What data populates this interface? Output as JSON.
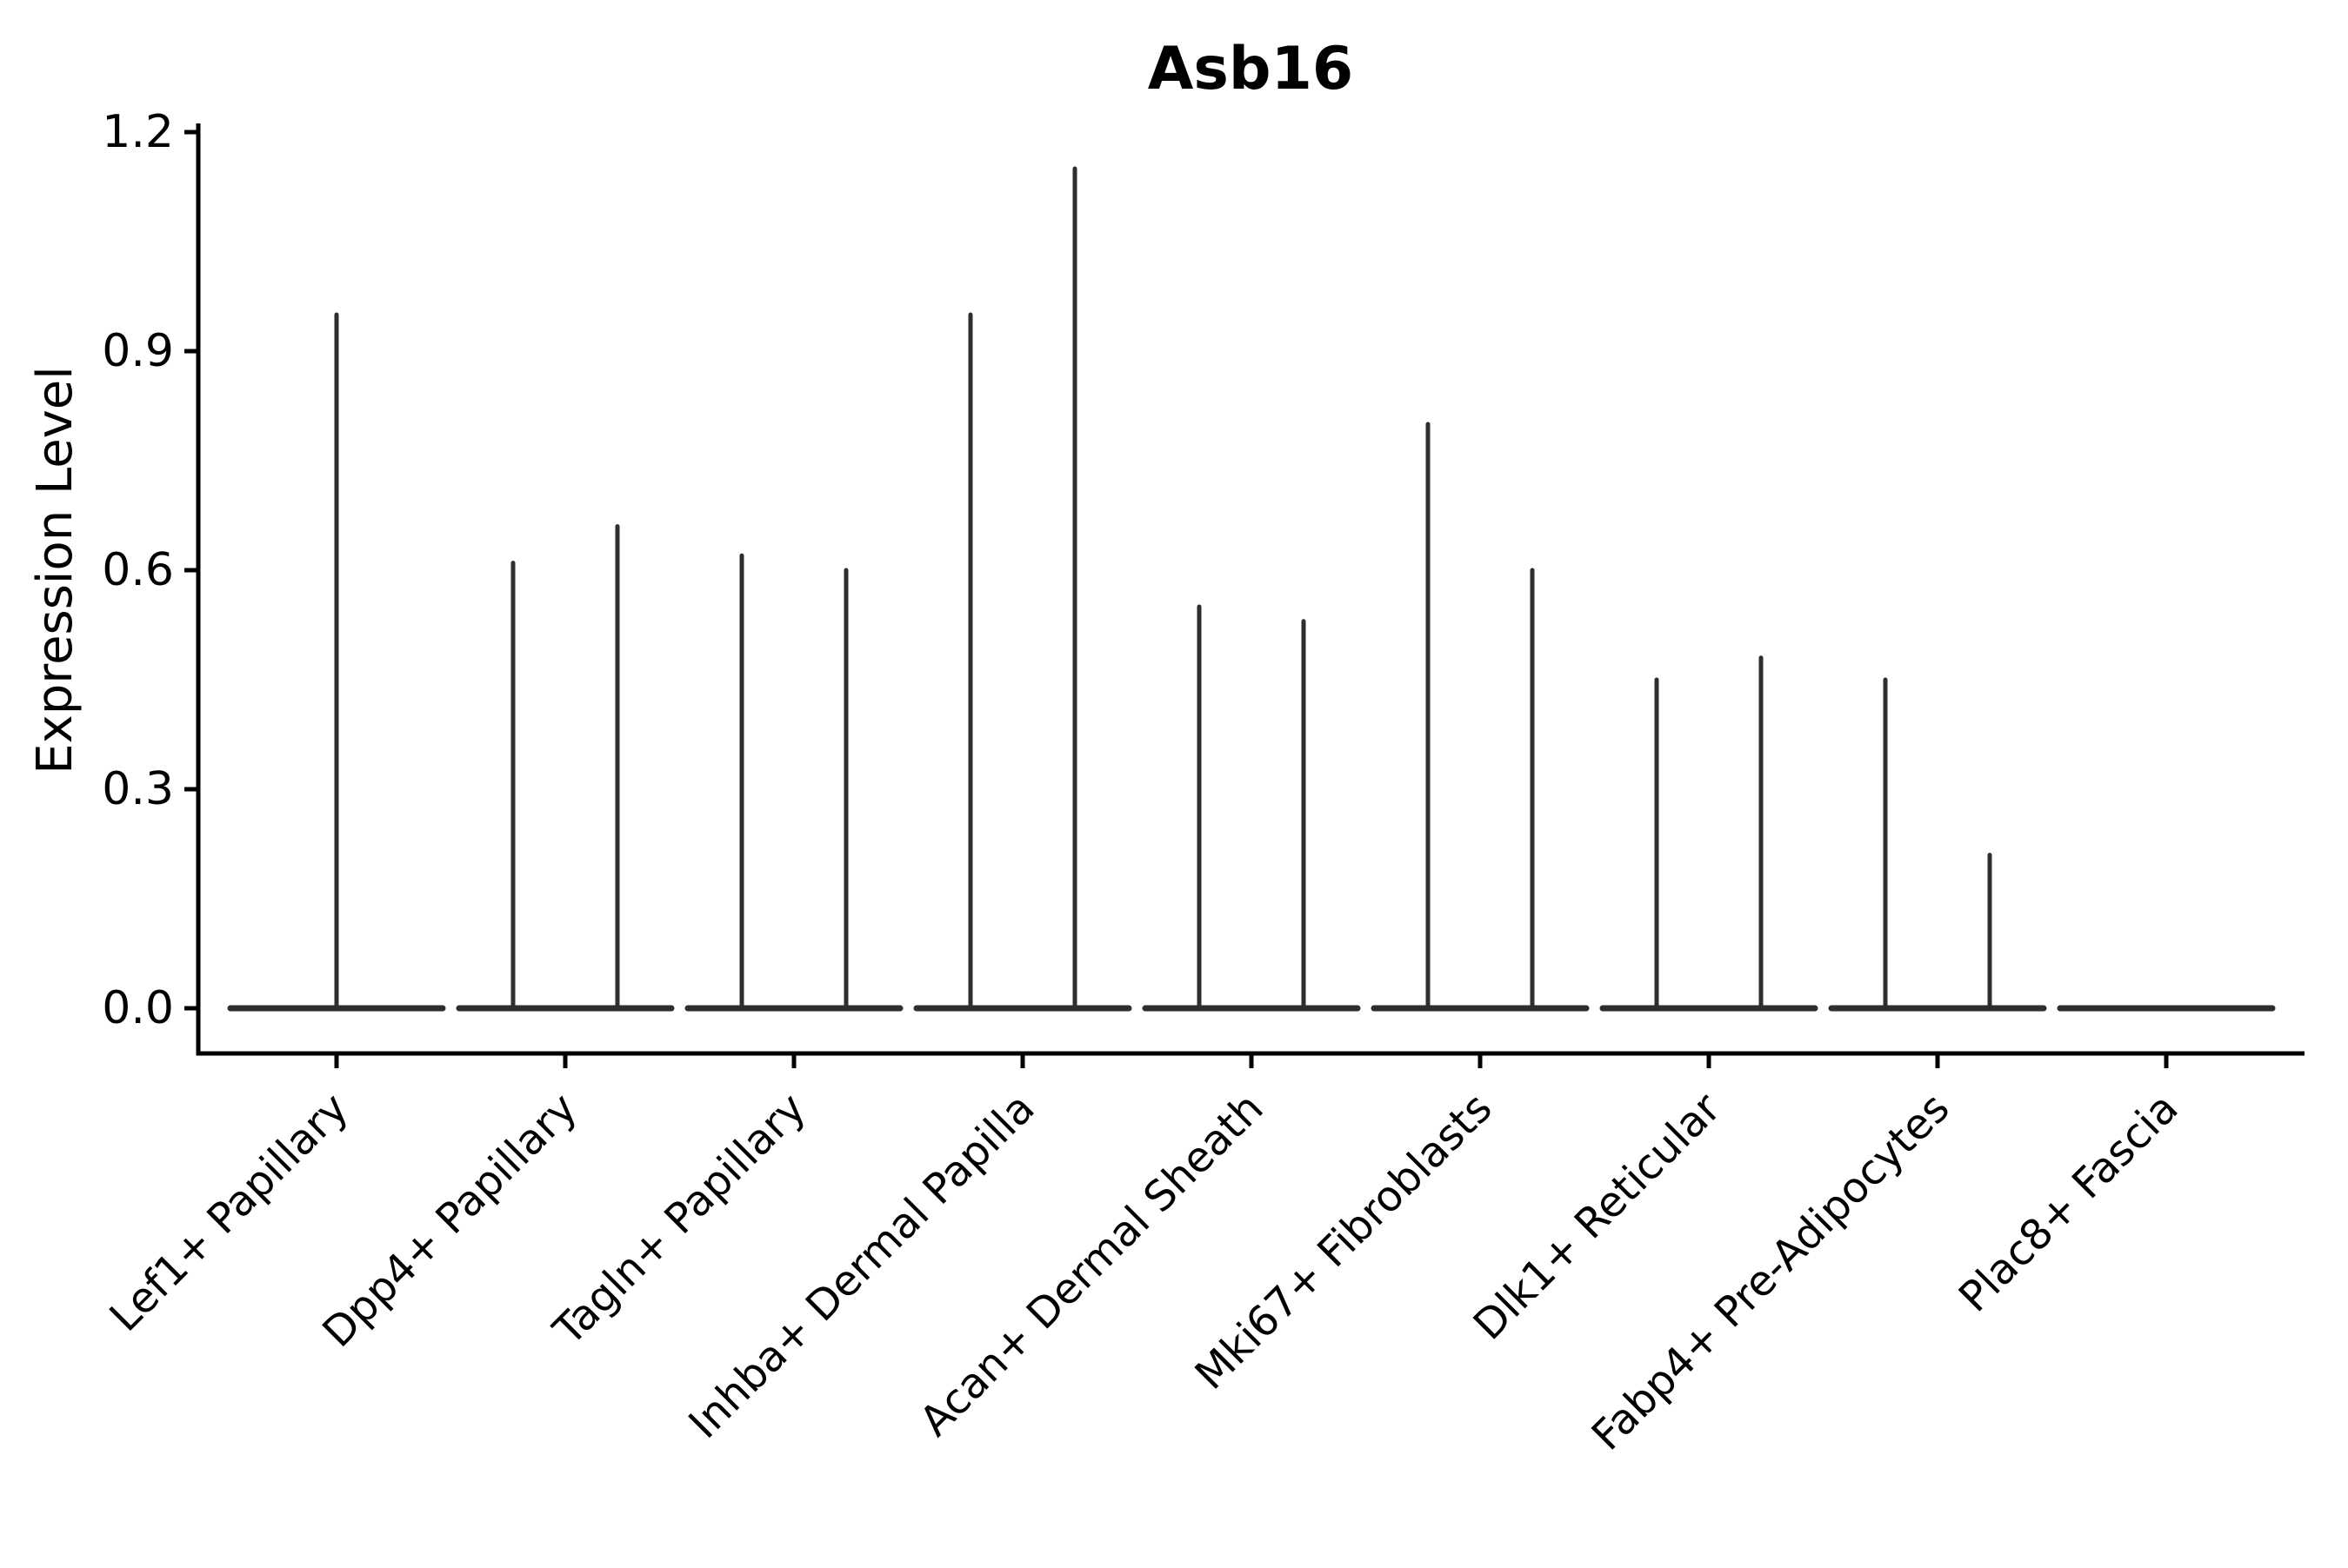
{
  "figure": {
    "background": "#ffffff"
  },
  "chart_data": {
    "type": "violin",
    "title": "Asb16",
    "ylabel": "Expression Level",
    "xlabel": "",
    "ylim": [
      0,
      1.2
    ],
    "yticks": [
      "0.0",
      "0.3",
      "0.6",
      "0.9",
      "1.2"
    ],
    "ytick_values": [
      0.0,
      0.3,
      0.6,
      0.9,
      1.2
    ],
    "grid": false,
    "legend": "none",
    "violin_color": "#2e2e2e",
    "axis_color": "#000000",
    "x_label_rotation_deg": 45,
    "categories": [
      "Lef1+ Papillary",
      "Dpp4+ Papillary",
      "Tagln+ Papillary",
      "Inhba+ Dermal Papilla",
      "Acan+ Dermal Sheath",
      "Mki67+ Fibroblasts",
      "Dlk1+ Reticular",
      "Fabp4+ Pre-Adipocytes",
      "Plac8+ Fascia"
    ],
    "violins": [
      {
        "category": "Lef1+ Papillary",
        "base_at_zero": true,
        "spikes": [
          {
            "offset": 0,
            "value": 0.95
          }
        ]
      },
      {
        "category": "Dpp4+ Papillary",
        "base_at_zero": true,
        "spikes": [
          {
            "offset": -60,
            "value": 0.61
          },
          {
            "offset": 60,
            "value": 0.66
          }
        ]
      },
      {
        "category": "Tagln+ Papillary",
        "base_at_zero": true,
        "spikes": [
          {
            "offset": -60,
            "value": 0.62
          },
          {
            "offset": 60,
            "value": 0.6
          }
        ]
      },
      {
        "category": "Inhba+ Dermal Papilla",
        "base_at_zero": true,
        "spikes": [
          {
            "offset": -60,
            "value": 0.95
          },
          {
            "offset": 60,
            "value": 1.15
          }
        ]
      },
      {
        "category": "Acan+ Dermal Sheath",
        "base_at_zero": true,
        "spikes": [
          {
            "offset": -60,
            "value": 0.55
          },
          {
            "offset": 60,
            "value": 0.53
          }
        ]
      },
      {
        "category": "Mki67+ Fibroblasts",
        "base_at_zero": true,
        "spikes": [
          {
            "offset": -60,
            "value": 0.8
          },
          {
            "offset": 60,
            "value": 0.6
          }
        ]
      },
      {
        "category": "Dlk1+ Reticular",
        "base_at_zero": true,
        "spikes": [
          {
            "offset": -60,
            "value": 0.45
          },
          {
            "offset": 60,
            "value": 0.48
          }
        ]
      },
      {
        "category": "Fabp4+ Pre-Adipocytes",
        "base_at_zero": true,
        "spikes": [
          {
            "offset": -60,
            "value": 0.45
          },
          {
            "offset": 60,
            "value": 0.21
          }
        ]
      },
      {
        "category": "Plac8+ Fascia",
        "base_at_zero": true,
        "spikes": []
      }
    ]
  }
}
